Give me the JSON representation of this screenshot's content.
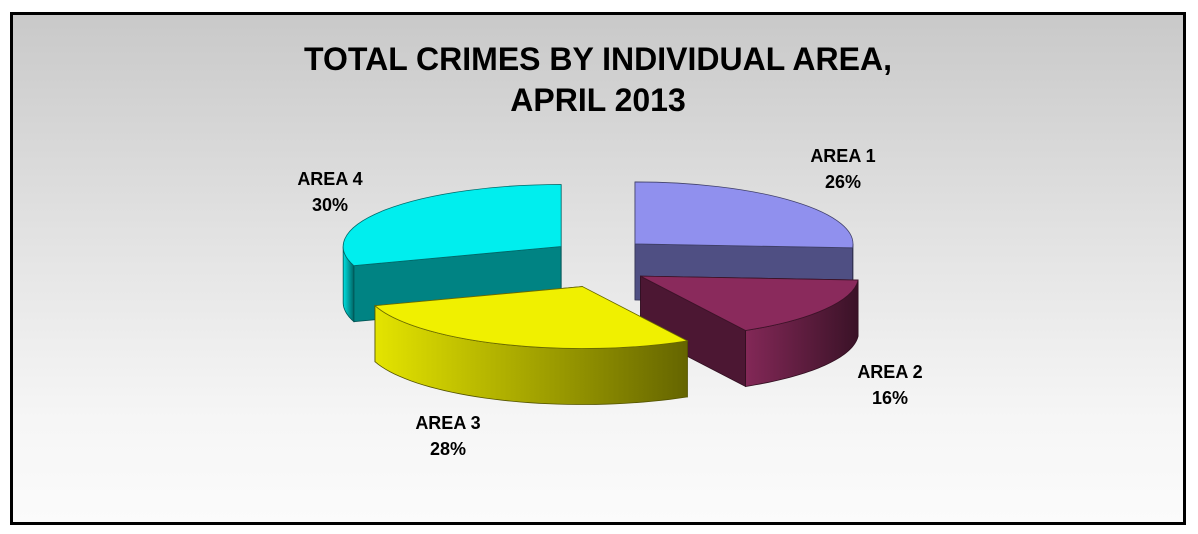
{
  "chart_data": {
    "type": "pie",
    "title_line1": "TOTAL CRIMES BY INDIVIDUAL AREA,",
    "title_line2": "APRIL 2013",
    "slices": [
      {
        "name": "AREA 1",
        "pct_label": "26%",
        "value": 26,
        "color": "#9090ee"
      },
      {
        "name": "AREA 2",
        "pct_label": "16%",
        "value": 16,
        "color": "#8a2a5c"
      },
      {
        "name": "AREA 3",
        "pct_label": "28%",
        "value": 28,
        "color": "#f0f000"
      },
      {
        "name": "AREA 4",
        "pct_label": "30%",
        "value": 30,
        "color": "#00eeee"
      }
    ],
    "legend": "none",
    "style": "3d-exploded"
  }
}
